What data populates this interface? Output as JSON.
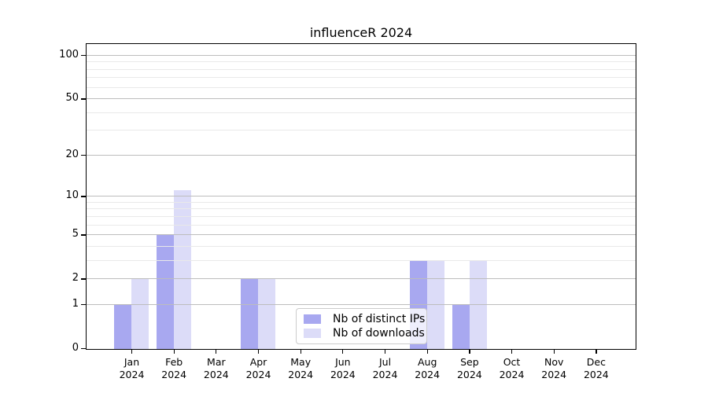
{
  "chart_data": {
    "type": "bar",
    "title": "influenceR 2024",
    "categories": [
      "Jan",
      "Feb",
      "Mar",
      "Apr",
      "May",
      "Jun",
      "Jul",
      "Aug",
      "Sep",
      "Oct",
      "Nov",
      "Dec"
    ],
    "category_year": "2024",
    "series": [
      {
        "name": "Nb of distinct IPs",
        "color": "#a8a8f0",
        "values": [
          1,
          5,
          0,
          2,
          0,
          0,
          0,
          3,
          1,
          0,
          0,
          0
        ]
      },
      {
        "name": "Nb of downloads",
        "color": "#dcdcf8",
        "values": [
          2,
          11,
          0,
          2,
          0,
          0,
          0,
          3,
          3,
          0,
          0,
          0
        ]
      }
    ],
    "xlabel": "",
    "ylabel": "",
    "yscale": "log1p",
    "yticks_major": [
      0,
      1,
      2,
      5,
      10,
      20,
      50,
      100
    ],
    "yticks_minor": [
      3,
      4,
      6,
      7,
      8,
      9,
      30,
      40,
      60,
      70,
      80,
      90
    ],
    "ylim": [
      0,
      120
    ],
    "grid": "horizontal, drawn above bars",
    "legend_position": "lower center",
    "colors": {
      "grid_major": "#bdbdbd",
      "grid_minor": "#e9e9e9",
      "spine": "#000000",
      "background": "#ffffff",
      "legend_border": "#cccccc",
      "text": "#000000"
    }
  }
}
